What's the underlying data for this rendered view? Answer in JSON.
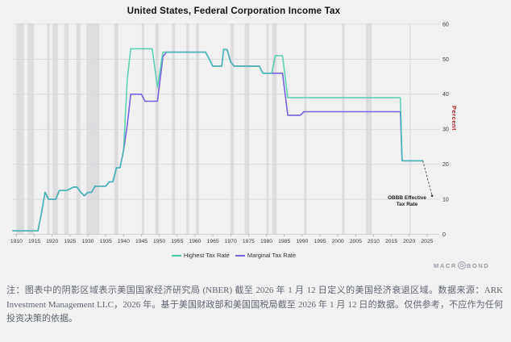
{
  "title": "United States, Federal Corporation Income Tax",
  "axis": {
    "unit_label": "Percent"
  },
  "annotation": {
    "label": "OBBB Effective Tax Rate"
  },
  "legend": [
    {
      "label": "Highest Tax Rate",
      "color": "#3ec9a7"
    },
    {
      "label": "Marginal Tax Rate",
      "color": "#7661e2"
    }
  ],
  "logo": {
    "pre": "MACR",
    "circled": "O",
    "post": "BOND"
  },
  "note": "注：图表中的阴影区域表示美国国家经济研究局 (NBER) 截至 2026 年 1 月 12 日定义的美国经济衰退区域。数据来源：ARK Investment Management LLC，2026 年。基于美国财政部和美国国税局截至 2026 年 1 月 12 日的数据。仅供参考，不应作为任何投资决策的依据。",
  "chart_data": {
    "type": "line",
    "title": "United States, Federal Corporation Income Tax",
    "xlabel": "",
    "ylabel": "Percent",
    "ylim": [
      0,
      60
    ],
    "yticks": [
      0,
      10,
      20,
      30,
      40,
      50,
      60
    ],
    "xlim": [
      1909,
      2026.8
    ],
    "xticks": [
      1910,
      1915,
      1920,
      1925,
      1930,
      1935,
      1940,
      1945,
      1950,
      1955,
      1960,
      1965,
      1970,
      1975,
      1980,
      1985,
      1990,
      1995,
      2000,
      2005,
      2010,
      2015,
      2020,
      2025
    ],
    "grid": true,
    "legend_position": "bottom",
    "colors": {
      "band": "#dddde0",
      "grid": "#d7d7d9",
      "axis": "#c8c8cb",
      "tick_text": "#3c3c3c",
      "annotation_line": "#3a3a3a"
    },
    "series": [
      {
        "name": "Highest Tax Rate",
        "color": "#3ec9a7",
        "points": [
          [
            1909,
            1
          ],
          [
            1916,
            1
          ],
          [
            1917,
            6
          ],
          [
            1918,
            12
          ],
          [
            1919,
            10
          ],
          [
            1921,
            10
          ],
          [
            1922,
            12.5
          ],
          [
            1924,
            12.5
          ],
          [
            1925,
            13
          ],
          [
            1926,
            13.5
          ],
          [
            1927,
            13.5
          ],
          [
            1928,
            12
          ],
          [
            1929,
            11
          ],
          [
            1930,
            12
          ],
          [
            1931,
            12
          ],
          [
            1932,
            13.75
          ],
          [
            1935,
            13.75
          ],
          [
            1936,
            15
          ],
          [
            1937,
            15
          ],
          [
            1938,
            19
          ],
          [
            1939,
            19
          ],
          [
            1940,
            24
          ],
          [
            1941,
            44
          ],
          [
            1942,
            53
          ],
          [
            1948,
            53
          ],
          [
            1949.5,
            42
          ],
          [
            1951,
            52
          ],
          [
            1963,
            52
          ],
          [
            1964,
            50
          ],
          [
            1965,
            48
          ],
          [
            1967.5,
            48
          ],
          [
            1968,
            52.8
          ],
          [
            1969,
            52.8
          ],
          [
            1970,
            49.2
          ],
          [
            1971,
            48
          ],
          [
            1978,
            48
          ],
          [
            1979,
            46
          ],
          [
            1981.5,
            46
          ],
          [
            1982.5,
            51
          ],
          [
            1984.5,
            51
          ],
          [
            1986,
            39
          ],
          [
            2017.5,
            39
          ],
          [
            2018,
            21
          ],
          [
            2023.8,
            21
          ]
        ]
      },
      {
        "name": "Marginal Tax Rate",
        "color": "#7661e2",
        "points": [
          [
            1909,
            1
          ],
          [
            1916,
            1
          ],
          [
            1917,
            6
          ],
          [
            1918,
            12
          ],
          [
            1919,
            10
          ],
          [
            1921,
            10
          ],
          [
            1922,
            12.5
          ],
          [
            1924,
            12.5
          ],
          [
            1925,
            13
          ],
          [
            1926,
            13.5
          ],
          [
            1927,
            13.5
          ],
          [
            1928,
            12
          ],
          [
            1929,
            11
          ],
          [
            1930,
            12
          ],
          [
            1931,
            12
          ],
          [
            1932,
            13.75
          ],
          [
            1935,
            13.75
          ],
          [
            1936,
            15
          ],
          [
            1937,
            15
          ],
          [
            1938,
            19
          ],
          [
            1939,
            19
          ],
          [
            1940,
            24
          ],
          [
            1941,
            31
          ],
          [
            1942,
            40
          ],
          [
            1945,
            40
          ],
          [
            1946,
            38
          ],
          [
            1949.5,
            38
          ],
          [
            1951,
            50.75
          ],
          [
            1952,
            52
          ],
          [
            1963,
            52
          ],
          [
            1964,
            50
          ],
          [
            1965,
            48
          ],
          [
            1967.5,
            48
          ],
          [
            1968,
            52.8
          ],
          [
            1969,
            52.8
          ],
          [
            1970,
            49.2
          ],
          [
            1971,
            48
          ],
          [
            1978,
            48
          ],
          [
            1979,
            46
          ],
          [
            1984.5,
            46
          ],
          [
            1986,
            34
          ],
          [
            1989.5,
            34
          ],
          [
            1990.5,
            35
          ],
          [
            2017.5,
            35
          ],
          [
            2018,
            21
          ],
          [
            2023.8,
            21
          ]
        ]
      }
    ],
    "recession_bands": [
      [
        1910.0,
        1912.1
      ],
      [
        1913.1,
        1914.9
      ],
      [
        1918.6,
        1919.3
      ],
      [
        1920.1,
        1921.6
      ],
      [
        1923.4,
        1924.6
      ],
      [
        1926.8,
        1927.9
      ],
      [
        1929.6,
        1933.2
      ],
      [
        1937.4,
        1938.5
      ],
      [
        1945.1,
        1945.8
      ],
      [
        1948.9,
        1949.8
      ],
      [
        1953.6,
        1954.4
      ],
      [
        1957.6,
        1958.3
      ],
      [
        1960.3,
        1961.1
      ],
      [
        1969.9,
        1970.9
      ],
      [
        1973.9,
        1975.2
      ],
      [
        1980.0,
        1980.6
      ],
      [
        1981.6,
        1982.9
      ],
      [
        1990.6,
        1991.2
      ],
      [
        2001.2,
        2001.9
      ],
      [
        2007.9,
        2009.5
      ],
      [
        2020.1,
        2020.4
      ]
    ],
    "annotation_projection": {
      "label": "OBBB Effective Tax Rate",
      "from": [
        2023.8,
        21
      ],
      "to": [
        2026.4,
        11
      ]
    }
  }
}
